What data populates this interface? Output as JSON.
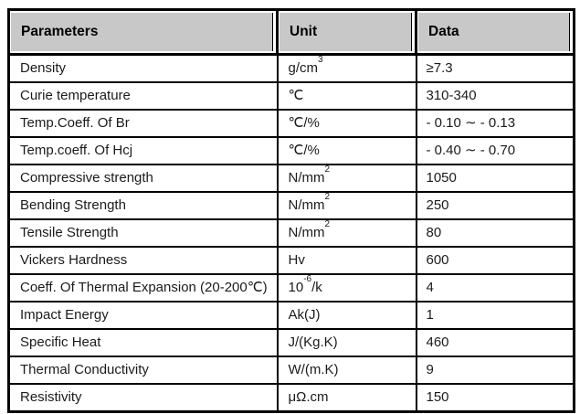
{
  "table": {
    "headers": {
      "param": "Parameters",
      "unit": "Unit",
      "data": "Data"
    },
    "rows": [
      {
        "param": "Density",
        "unit_base": "g/cm",
        "unit_sup": "3",
        "unit_tail": "",
        "data": "≥7.3"
      },
      {
        "param": "Curie temperature",
        "unit_base": "℃",
        "unit_sup": "",
        "unit_tail": "",
        "data": "310-340"
      },
      {
        "param": "Temp.Coeff. Of Br",
        "unit_base": "℃/%",
        "unit_sup": "",
        "unit_tail": "",
        "data": "- 0.10 ∼ - 0.13"
      },
      {
        "param": "Temp.coeff. Of Hcj",
        "unit_base": "℃/%",
        "unit_sup": "",
        "unit_tail": "",
        "data": "- 0.40 ∼ - 0.70"
      },
      {
        "param": "Compressive strength",
        "unit_base": "N/mm",
        "unit_sup": "2",
        "unit_tail": "",
        "data": "1050"
      },
      {
        "param": "Bending Strength",
        "unit_base": "N/mm",
        "unit_sup": "2",
        "unit_tail": "",
        "data": "250"
      },
      {
        "param": "Tensile Strength",
        "unit_base": "N/mm",
        "unit_sup": "2",
        "unit_tail": "",
        "data": "80"
      },
      {
        "param": "Vickers Hardness",
        "unit_base": "Hv",
        "unit_sup": "",
        "unit_tail": "",
        "data": "600"
      },
      {
        "param": "Coeff. Of Thermal Expansion (20-200℃)",
        "unit_base": "10",
        "unit_sup": "-6",
        "unit_tail": "/k",
        "data": "4"
      },
      {
        "param": "Impact Energy",
        "unit_base": "Ak(J)",
        "unit_sup": "",
        "unit_tail": "",
        "data": "1"
      },
      {
        "param": "Specific Heat",
        "unit_base": "J/(Kg.K)",
        "unit_sup": "",
        "unit_tail": "",
        "data": "460"
      },
      {
        "param": "Thermal Conductivity",
        "unit_base": "W/(m.K)",
        "unit_sup": "",
        "unit_tail": "",
        "data": "9"
      },
      {
        "param": "Resistivity",
        "unit_base": "μΩ.cm",
        "unit_sup": "",
        "unit_tail": "",
        "data": "150"
      }
    ],
    "colors": {
      "header_bg": "#c8c8c8",
      "border": "#000000",
      "text": "#1b1b1b",
      "background": "#ffffff"
    }
  }
}
